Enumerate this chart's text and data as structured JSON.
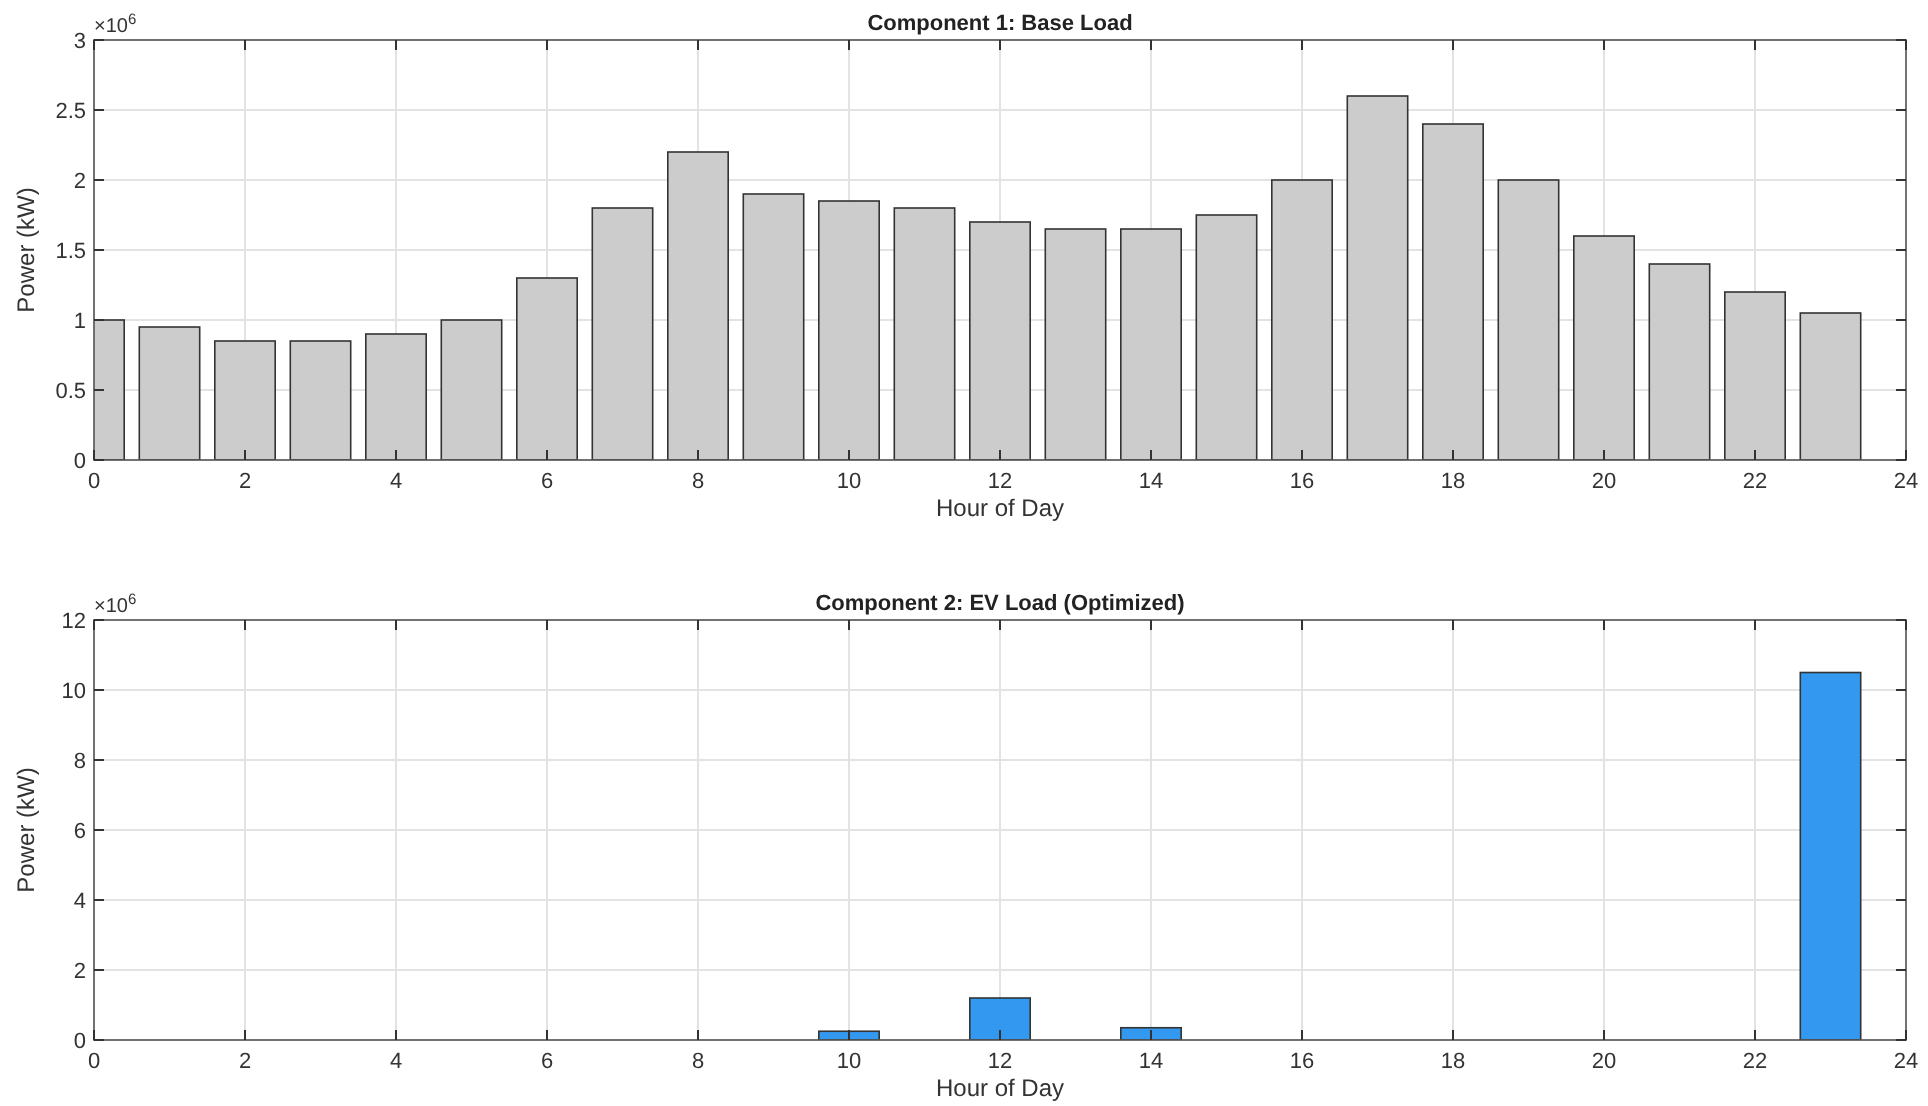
{
  "chart_data": [
    {
      "type": "bar",
      "title": "Component 1: Base Load",
      "xlabel": "Hour of Day",
      "ylabel": "Power (kW)",
      "annotations": [
        "×10$^{6}$"
      ],
      "x": [
        0,
        1,
        2,
        3,
        4,
        5,
        6,
        7,
        8,
        9,
        10,
        11,
        12,
        13,
        14,
        15,
        16,
        17,
        18,
        19,
        20,
        21,
        22,
        23
      ],
      "series": [
        {
          "color": "#cccccc",
          "values": [
            1.0,
            0.95,
            0.85,
            0.85,
            0.9,
            1.0,
            1.3,
            1.8,
            2.2,
            1.9,
            1.85,
            1.8,
            1.7,
            1.65,
            1.65,
            1.75,
            2.0,
            2.6,
            2.4,
            2.0,
            1.6,
            1.4,
            1.2,
            1.05
          ]
        }
      ],
      "xlim": [
        0,
        24
      ],
      "xticks": [
        0,
        2,
        4,
        6,
        8,
        10,
        12,
        14,
        16,
        18,
        20,
        22,
        24
      ],
      "ylim": [
        0,
        3
      ],
      "yticks": [
        0,
        0.5,
        1,
        1.5,
        2,
        2.5,
        3
      ],
      "grid": true
    },
    {
      "type": "bar",
      "title": "Component 2: EV Load (Optimized)",
      "xlabel": "Hour of Day",
      "ylabel": "Power (kW)",
      "annotations": [
        "×10$^{6}$"
      ],
      "x": [
        0,
        1,
        2,
        3,
        4,
        5,
        6,
        7,
        8,
        9,
        10,
        11,
        12,
        13,
        14,
        15,
        16,
        17,
        18,
        19,
        20,
        21,
        22,
        23
      ],
      "series": [
        {
          "color": "#3399f0",
          "values": [
            0,
            0,
            0,
            0,
            0,
            0,
            0,
            0,
            0,
            0,
            0.25,
            0,
            1.2,
            0,
            0.35,
            0,
            0,
            0,
            0,
            0,
            0,
            0,
            0,
            10.5
          ]
        }
      ],
      "xlim": [
        0,
        24
      ],
      "xticks": [
        0,
        2,
        4,
        6,
        8,
        10,
        12,
        14,
        16,
        18,
        20,
        22,
        24
      ],
      "ylim": [
        0,
        12
      ],
      "yticks": [
        0,
        2,
        4,
        6,
        8,
        10,
        12
      ],
      "grid": true
    }
  ]
}
